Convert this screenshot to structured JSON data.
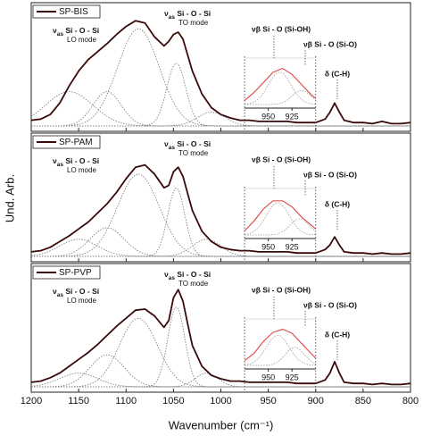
{
  "chart_data": [
    {
      "type": "line",
      "legend": "SP-BIS",
      "xlim": [
        1200,
        800
      ],
      "xticks": [
        1200,
        1150,
        1100,
        1050,
        1000,
        950,
        900,
        850,
        800
      ],
      "ylim": [
        0,
        1
      ],
      "x": [
        1200,
        1190,
        1180,
        1170,
        1160,
        1150,
        1140,
        1130,
        1120,
        1110,
        1100,
        1090,
        1080,
        1070,
        1060,
        1055,
        1050,
        1045,
        1040,
        1035,
        1030,
        1020,
        1010,
        1000,
        990,
        980,
        970,
        960,
        950,
        940,
        930,
        920,
        910,
        900,
        890,
        885,
        880,
        875,
        870,
        860,
        850,
        840,
        830,
        820,
        810,
        800
      ],
      "values": [
        0.05,
        0.06,
        0.1,
        0.2,
        0.35,
        0.48,
        0.58,
        0.65,
        0.72,
        0.8,
        0.87,
        0.92,
        0.9,
        0.78,
        0.7,
        0.74,
        0.8,
        0.82,
        0.76,
        0.62,
        0.48,
        0.28,
        0.16,
        0.1,
        0.07,
        0.05,
        0.05,
        0.04,
        0.04,
        0.04,
        0.04,
        0.03,
        0.03,
        0.03,
        0.06,
        0.12,
        0.2,
        0.12,
        0.05,
        0.03,
        0.03,
        0.02,
        0.04,
        0.02,
        0.02,
        0.03
      ],
      "color": "#3a0a0a",
      "peaks": [
        {
          "center": 1160,
          "height": 0.3,
          "width": 25
        },
        {
          "center": 1120,
          "height": 0.3,
          "width": 15
        },
        {
          "center": 1087,
          "height": 0.85,
          "width": 22
        },
        {
          "center": 1047,
          "height": 0.55,
          "width": 10
        },
        {
          "center": 1010,
          "height": 0.12,
          "width": 15
        }
      ],
      "lo_label": {
        "symbol": "ν",
        "subscript": "as",
        "text": " Si - O - Si",
        "mode": "LO mode"
      },
      "to_label": {
        "symbol": "ν",
        "subscript": "as",
        "text": " Si - O - Si",
        "mode": "TO mode"
      },
      "ch_label": "δ (C-H)",
      "inset": {
        "xlim": [
          975,
          900
        ],
        "xticks": [
          950,
          925
        ],
        "ylim": [
          0,
          1
        ],
        "x": [
          975,
          965,
          955,
          945,
          935,
          925,
          915,
          905,
          900
        ],
        "values": [
          0.1,
          0.3,
          0.55,
          0.8,
          0.9,
          0.75,
          0.5,
          0.25,
          0.15
        ],
        "color": "#e05050",
        "peaks": [
          {
            "center": 938,
            "height": 0.8,
            "width": 12
          },
          {
            "center": 915,
            "height": 0.35,
            "width": 10
          }
        ],
        "labels": [
          "νβ Si - O (Si-OH)",
          "νβ Si - O (Si-O)"
        ]
      }
    },
    {
      "type": "line",
      "legend": "SP-PAM",
      "xlim": [
        1200,
        800
      ],
      "xticks": [
        1200,
        1150,
        1100,
        1050,
        1000,
        950,
        900,
        850,
        800
      ],
      "ylim": [
        0,
        1
      ],
      "x": [
        1200,
        1190,
        1180,
        1170,
        1160,
        1150,
        1140,
        1130,
        1120,
        1110,
        1100,
        1090,
        1080,
        1070,
        1060,
        1055,
        1050,
        1045,
        1040,
        1035,
        1030,
        1020,
        1010,
        1000,
        990,
        980,
        970,
        960,
        950,
        940,
        930,
        920,
        910,
        900,
        890,
        885,
        880,
        875,
        870,
        860,
        850,
        840,
        830,
        820,
        810,
        800
      ],
      "values": [
        0.04,
        0.05,
        0.08,
        0.13,
        0.18,
        0.24,
        0.3,
        0.38,
        0.46,
        0.56,
        0.68,
        0.78,
        0.8,
        0.72,
        0.6,
        0.62,
        0.74,
        0.78,
        0.7,
        0.55,
        0.4,
        0.22,
        0.13,
        0.08,
        0.06,
        0.05,
        0.05,
        0.04,
        0.04,
        0.04,
        0.04,
        0.03,
        0.03,
        0.03,
        0.06,
        0.1,
        0.17,
        0.1,
        0.04,
        0.03,
        0.03,
        0.02,
        0.03,
        0.02,
        0.02,
        0.03
      ],
      "color": "#3a0a0a",
      "peaks": [
        {
          "center": 1150,
          "height": 0.15,
          "width": 20
        },
        {
          "center": 1120,
          "height": 0.25,
          "width": 18
        },
        {
          "center": 1087,
          "height": 0.72,
          "width": 22
        },
        {
          "center": 1047,
          "height": 0.6,
          "width": 9
        },
        {
          "center": 1015,
          "height": 0.15,
          "width": 15
        }
      ],
      "lo_label": {
        "symbol": "ν",
        "subscript": "as",
        "text": " Si - O - Si",
        "mode": "LO mode"
      },
      "to_label": {
        "symbol": "ν",
        "subscript": "as",
        "text": " Si - O - Si",
        "mode": "TO mode"
      },
      "ch_label": "δ (C-H)",
      "y_label": "Und. Arb.",
      "inset": {
        "xlim": [
          975,
          900
        ],
        "xticks": [
          950,
          925
        ],
        "ylim": [
          0,
          1
        ],
        "x": [
          975,
          965,
          955,
          945,
          935,
          925,
          915,
          905,
          900
        ],
        "values": [
          0.1,
          0.35,
          0.65,
          0.85,
          0.85,
          0.7,
          0.45,
          0.25,
          0.15
        ],
        "color": "#e05050",
        "peaks": [
          {
            "center": 940,
            "height": 0.8,
            "width": 12
          },
          {
            "center": 917,
            "height": 0.4,
            "width": 10
          }
        ],
        "labels": [
          "νβ Si - O (Si-OH)",
          "νβ Si - O (Si-O)"
        ]
      }
    },
    {
      "type": "line",
      "legend": "SP-PVP",
      "xlim": [
        1200,
        800
      ],
      "xticks": [
        1200,
        1150,
        1100,
        1050,
        1000,
        950,
        900,
        850,
        800
      ],
      "ylim": [
        0,
        1
      ],
      "x": [
        1200,
        1190,
        1180,
        1170,
        1160,
        1150,
        1140,
        1130,
        1120,
        1110,
        1100,
        1090,
        1080,
        1070,
        1060,
        1055,
        1050,
        1045,
        1040,
        1035,
        1030,
        1020,
        1010,
        1000,
        990,
        980,
        970,
        960,
        950,
        940,
        930,
        920,
        910,
        900,
        890,
        885,
        880,
        875,
        870,
        860,
        850,
        840,
        830,
        820,
        810,
        800
      ],
      "values": [
        0.04,
        0.05,
        0.08,
        0.12,
        0.18,
        0.24,
        0.3,
        0.37,
        0.45,
        0.53,
        0.6,
        0.67,
        0.68,
        0.62,
        0.52,
        0.58,
        0.78,
        0.85,
        0.75,
        0.55,
        0.36,
        0.18,
        0.1,
        0.07,
        0.05,
        0.05,
        0.04,
        0.04,
        0.04,
        0.04,
        0.04,
        0.03,
        0.03,
        0.03,
        0.06,
        0.12,
        0.22,
        0.12,
        0.04,
        0.03,
        0.03,
        0.02,
        0.03,
        0.02,
        0.02,
        0.03
      ],
      "color": "#3a0a0a",
      "peaks": [
        {
          "center": 1150,
          "height": 0.12,
          "width": 20
        },
        {
          "center": 1120,
          "height": 0.28,
          "width": 18
        },
        {
          "center": 1087,
          "height": 0.6,
          "width": 20
        },
        {
          "center": 1047,
          "height": 0.7,
          "width": 9
        },
        {
          "center": 1015,
          "height": 0.12,
          "width": 12
        }
      ],
      "lo_label": {
        "symbol": "ν",
        "subscript": "as",
        "text": " Si - O - Si",
        "mode": "LO mode"
      },
      "to_label": {
        "symbol": "ν",
        "subscript": "as",
        "text": " Si - O - Si",
        "mode": "TO mode"
      },
      "ch_label": "δ (C-H)",
      "x_label": "Wavenumber (cm⁻¹)",
      "inset": {
        "xlim": [
          975,
          900
        ],
        "xticks": [
          950,
          925
        ],
        "ylim": [
          0,
          1
        ],
        "x": [
          975,
          965,
          955,
          945,
          935,
          925,
          915,
          905,
          900
        ],
        "values": [
          0.12,
          0.3,
          0.6,
          0.82,
          0.9,
          0.8,
          0.55,
          0.3,
          0.18
        ],
        "color": "#e05050",
        "peaks": [
          {
            "center": 940,
            "height": 0.75,
            "width": 12
          },
          {
            "center": 922,
            "height": 0.45,
            "width": 10
          }
        ],
        "labels": [
          "νβ Si - O (Si-OH)",
          "νβ Si - O (Si-O)"
        ]
      }
    }
  ]
}
